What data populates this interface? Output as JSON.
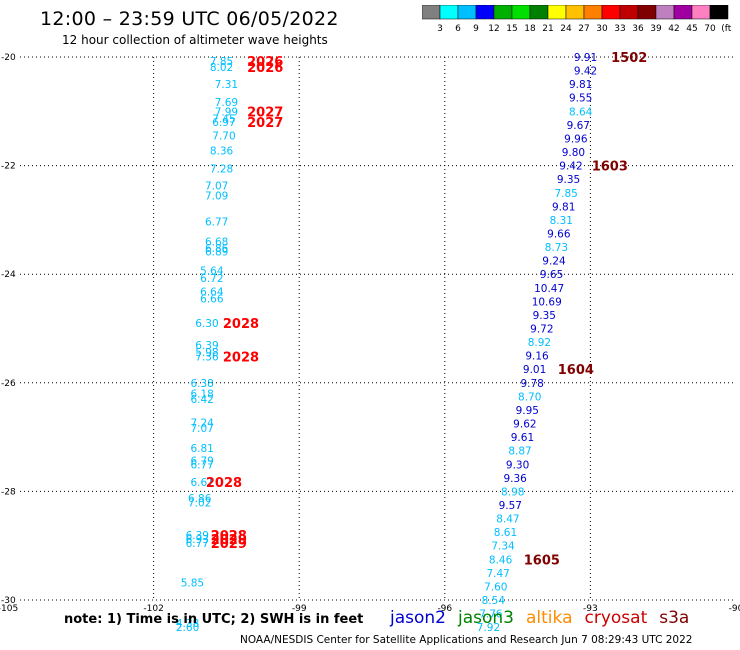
{
  "header": {
    "title": "12:00 – 23:59 UTC 06/05/2022",
    "subtitle": "12 hour collection of altimeter wave heights"
  },
  "colorbar": {
    "swatches": [
      "#808080",
      "#00ffff",
      "#00bfff",
      "#0000ff",
      "#00b000",
      "#00e000",
      "#008000",
      "#ffff00",
      "#ffc000",
      "#ff8000",
      "#ff0000",
      "#c00000",
      "#800000",
      "#c080c0",
      "#a000a0",
      "#ff80c0",
      "#000000"
    ],
    "labels": [
      "3",
      "6",
      "9",
      "12",
      "15",
      "18",
      "21",
      "24",
      "27",
      "30",
      "33",
      "36",
      "39",
      "42",
      "45",
      "70",
      "(ft)"
    ]
  },
  "footer": {
    "note": "note: 1) Time is in UTC; 2) SWH is in feet",
    "credit": "NOAA/NESDIS Center for Satellite Applications and Research    Jun  7 08:29:43 UTC 2022"
  },
  "legend": [
    {
      "name": "jason2",
      "color": "#0000d0"
    },
    {
      "name": "jason3",
      "color": "#008000"
    },
    {
      "name": "altika",
      "color": "#ff8c00"
    },
    {
      "name": "cryosat",
      "color": "#cc0000"
    },
    {
      "name": "s3a",
      "color": "#800000"
    }
  ],
  "chart_data": {
    "type": "scatter",
    "xlim": [
      -105,
      -90
    ],
    "ylim": [
      -30,
      -20
    ],
    "xticks": [
      -105,
      -102,
      -99,
      -96,
      -93,
      -90
    ],
    "yticks": [
      -20,
      -22,
      -24,
      -26,
      -28,
      -30
    ],
    "grid": true,
    "series": [
      {
        "color": "#00bfff",
        "points": [
          {
            "x": -100.6,
            "y": -20.07,
            "v": "7.85"
          },
          {
            "x": -100.6,
            "y": -20.18,
            "v": "8.02"
          },
          {
            "x": -100.5,
            "y": -20.5,
            "v": "7.31"
          },
          {
            "x": -100.5,
            "y": -20.83,
            "v": "7.69"
          },
          {
            "x": -100.5,
            "y": -21.0,
            "v": "7.99"
          },
          {
            "x": -100.55,
            "y": -21.13,
            "v": "7.45"
          },
          {
            "x": -100.55,
            "y": -21.2,
            "v": "6.97"
          },
          {
            "x": -100.55,
            "y": -21.45,
            "v": "7.70"
          },
          {
            "x": -100.6,
            "y": -21.72,
            "v": "8.36"
          },
          {
            "x": -100.6,
            "y": -22.05,
            "v": "7.28"
          },
          {
            "x": -100.7,
            "y": -22.37,
            "v": "7.07"
          },
          {
            "x": -100.7,
            "y": -22.55,
            "v": "7.09"
          },
          {
            "x": -100.7,
            "y": -23.03,
            "v": "6.77"
          },
          {
            "x": -100.7,
            "y": -23.4,
            "v": "6.68"
          },
          {
            "x": -100.7,
            "y": -23.52,
            "v": "6.86"
          },
          {
            "x": -100.7,
            "y": -23.58,
            "v": "6.89"
          },
          {
            "x": -100.8,
            "y": -23.93,
            "v": "5.64"
          },
          {
            "x": -100.8,
            "y": -24.07,
            "v": "6.72"
          },
          {
            "x": -100.8,
            "y": -24.32,
            "v": "6.64"
          },
          {
            "x": -100.8,
            "y": -24.45,
            "v": "6.66"
          },
          {
            "x": -100.9,
            "y": -24.9,
            "v": "6.30"
          },
          {
            "x": -100.9,
            "y": -25.3,
            "v": "6.39"
          },
          {
            "x": -100.9,
            "y": -25.43,
            "v": "5.98"
          },
          {
            "x": -100.9,
            "y": -25.52,
            "v": "7.36"
          },
          {
            "x": -101.0,
            "y": -26.0,
            "v": "6.38"
          },
          {
            "x": -101.0,
            "y": -26.2,
            "v": "6.18"
          },
          {
            "x": -101.0,
            "y": -26.3,
            "v": "6.42"
          },
          {
            "x": -101.0,
            "y": -26.73,
            "v": "7.24"
          },
          {
            "x": -101.0,
            "y": -26.83,
            "v": "7.07"
          },
          {
            "x": -101.0,
            "y": -27.2,
            "v": "6.81"
          },
          {
            "x": -101.0,
            "y": -27.43,
            "v": "6.79"
          },
          {
            "x": -101.0,
            "y": -27.5,
            "v": "6.77"
          },
          {
            "x": -101.0,
            "y": -27.83,
            "v": "6.61"
          },
          {
            "x": -101.05,
            "y": -28.12,
            "v": "6.86"
          },
          {
            "x": -101.05,
            "y": -28.2,
            "v": "7.02"
          },
          {
            "x": -101.1,
            "y": -28.8,
            "v": "6.39"
          },
          {
            "x": -101.1,
            "y": -28.88,
            "v": "6.93"
          },
          {
            "x": -101.1,
            "y": -28.95,
            "v": "6.77"
          },
          {
            "x": -101.2,
            "y": -29.68,
            "v": "5.85"
          },
          {
            "x": -101.3,
            "y": -30.42,
            "v": "4.38"
          },
          {
            "x": -101.3,
            "y": -30.5,
            "v": "2.60"
          }
        ]
      },
      {
        "color": "#0000d0",
        "points": [
          {
            "x": -93.1,
            "y": -20.0,
            "v": "9.91"
          },
          {
            "x": -93.1,
            "y": -20.25,
            "v": "9.42"
          },
          {
            "x": -93.2,
            "y": -20.5,
            "v": "9.81"
          },
          {
            "x": -93.2,
            "y": -20.75,
            "v": "9.55"
          },
          {
            "x": -93.2,
            "y": -21.0,
            "v": "8.64",
            "c": "#00bfff"
          },
          {
            "x": -93.25,
            "y": -21.25,
            "v": "9.67"
          },
          {
            "x": -93.3,
            "y": -21.5,
            "v": "9.96"
          },
          {
            "x": -93.35,
            "y": -21.75,
            "v": "9.80"
          },
          {
            "x": -93.4,
            "y": -22.0,
            "v": "9.42"
          },
          {
            "x": -93.45,
            "y": -22.25,
            "v": "9.35"
          },
          {
            "x": -93.5,
            "y": -22.5,
            "v": "7.85",
            "c": "#00bfff"
          },
          {
            "x": -93.55,
            "y": -22.75,
            "v": "9.81"
          },
          {
            "x": -93.6,
            "y": -23.0,
            "v": "8.31",
            "c": "#00bfff"
          },
          {
            "x": -93.65,
            "y": -23.25,
            "v": "9.66"
          },
          {
            "x": -93.7,
            "y": -23.5,
            "v": "8.73",
            "c": "#00bfff"
          },
          {
            "x": -93.75,
            "y": -23.75,
            "v": "9.24"
          },
          {
            "x": -93.8,
            "y": -24.0,
            "v": "9.65"
          },
          {
            "x": -93.85,
            "y": -24.25,
            "v": "10.47"
          },
          {
            "x": -93.9,
            "y": -24.5,
            "v": "10.69"
          },
          {
            "x": -93.95,
            "y": -24.75,
            "v": "9.35"
          },
          {
            "x": -94.0,
            "y": -25.0,
            "v": "9.72"
          },
          {
            "x": -94.05,
            "y": -25.25,
            "v": "8.92",
            "c": "#00bfff"
          },
          {
            "x": -94.1,
            "y": -25.5,
            "v": "9.16"
          },
          {
            "x": -94.15,
            "y": -25.75,
            "v": "9.01"
          },
          {
            "x": -94.2,
            "y": -26.0,
            "v": "9.78"
          },
          {
            "x": -94.25,
            "y": -26.25,
            "v": "8.70",
            "c": "#00bfff"
          },
          {
            "x": -94.3,
            "y": -26.5,
            "v": "9.95"
          },
          {
            "x": -94.35,
            "y": -26.75,
            "v": "9.62"
          },
          {
            "x": -94.4,
            "y": -27.0,
            "v": "9.61"
          },
          {
            "x": -94.45,
            "y": -27.25,
            "v": "8.87",
            "c": "#00bfff"
          },
          {
            "x": -94.5,
            "y": -27.5,
            "v": "9.30"
          },
          {
            "x": -94.55,
            "y": -27.75,
            "v": "9.36"
          },
          {
            "x": -94.6,
            "y": -28.0,
            "v": "8.98",
            "c": "#00bfff"
          },
          {
            "x": -94.65,
            "y": -28.25,
            "v": "9.57"
          },
          {
            "x": -94.7,
            "y": -28.5,
            "v": "8.47",
            "c": "#00bfff"
          },
          {
            "x": -94.75,
            "y": -28.75,
            "v": "8.61",
            "c": "#00bfff"
          },
          {
            "x": -94.8,
            "y": -29.0,
            "v": "7.34",
            "c": "#00bfff"
          },
          {
            "x": -94.85,
            "y": -29.25,
            "v": "8.46",
            "c": "#00bfff"
          },
          {
            "x": -94.9,
            "y": -29.5,
            "v": "7.47",
            "c": "#00bfff"
          },
          {
            "x": -94.95,
            "y": -29.75,
            "v": "7.60",
            "c": "#00bfff"
          },
          {
            "x": -95.0,
            "y": -30.0,
            "v": "8.54",
            "c": "#00bfff"
          },
          {
            "x": -95.05,
            "y": -30.25,
            "v": "7.76",
            "c": "#00bfff"
          },
          {
            "x": -95.1,
            "y": -30.5,
            "v": "7.92",
            "c": "#00bfff"
          }
        ]
      }
    ],
    "time_labels": [
      {
        "x": -99.7,
        "y": -20.07,
        "v": "2026",
        "c": "#ff0000"
      },
      {
        "x": -99.7,
        "y": -20.18,
        "v": "2026",
        "c": "#ff0000"
      },
      {
        "x": -99.7,
        "y": -21.0,
        "v": "2027",
        "c": "#ff0000"
      },
      {
        "x": -99.7,
        "y": -21.2,
        "v": "2027",
        "c": "#ff0000"
      },
      {
        "x": -100.2,
        "y": -24.9,
        "v": "2028",
        "c": "#ff0000"
      },
      {
        "x": -100.2,
        "y": -25.52,
        "v": "2028",
        "c": "#ff0000"
      },
      {
        "x": -100.55,
        "y": -27.83,
        "v": "2028",
        "c": "#ff0000"
      },
      {
        "x": -100.45,
        "y": -28.8,
        "v": "2028",
        "c": "#ff0000"
      },
      {
        "x": -100.45,
        "y": -28.88,
        "v": "2029",
        "c": "#ff0000"
      },
      {
        "x": -100.45,
        "y": -28.95,
        "v": "2029",
        "c": "#ff0000"
      },
      {
        "x": -92.2,
        "y": -20.0,
        "v": "1502",
        "c": "#800000"
      },
      {
        "x": -92.6,
        "y": -22.0,
        "v": "1603",
        "c": "#800000"
      },
      {
        "x": -93.3,
        "y": -25.75,
        "v": "1604",
        "c": "#800000"
      },
      {
        "x": -94.0,
        "y": -29.25,
        "v": "1605",
        "c": "#800000"
      }
    ]
  }
}
